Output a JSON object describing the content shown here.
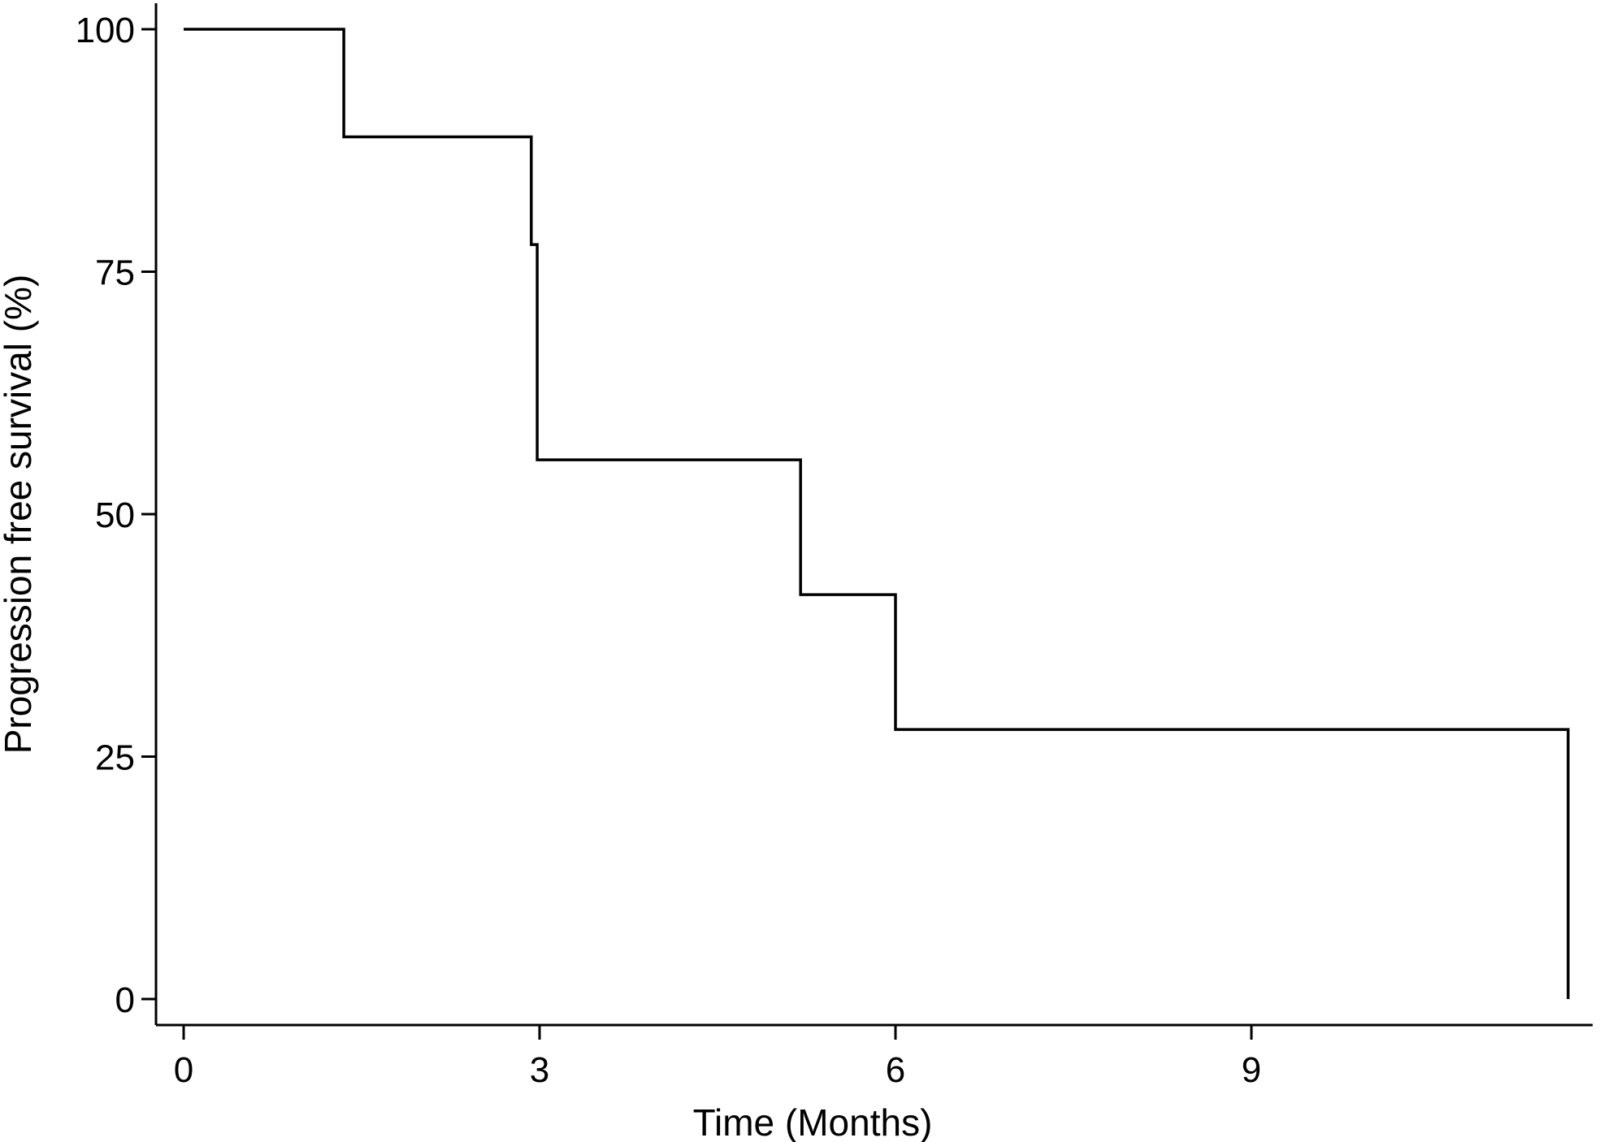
{
  "chart_data": {
    "type": "line",
    "style": "step",
    "title": "",
    "xlabel": "Time (Months)",
    "ylabel": "Progression free survival (%)",
    "xlim": [
      0,
      11.7
    ],
    "ylim": [
      0,
      100
    ],
    "xticks": [
      0,
      3,
      6,
      9
    ],
    "xtick_labels": [
      "0",
      "3",
      "6",
      "9"
    ],
    "yticks": [
      0,
      25,
      50,
      75,
      100
    ],
    "ytick_labels": [
      "0",
      "25",
      "50",
      "75",
      "100"
    ],
    "grid": false,
    "legend": "none",
    "line_color": "#000000",
    "series": [
      {
        "x": [
          0,
          1.35,
          1.35,
          2.93,
          2.93,
          2.98,
          2.98,
          5.2,
          5.2,
          6.0,
          6.0,
          11.67,
          11.67
        ],
        "y": [
          100,
          100,
          88.9,
          88.9,
          77.8,
          77.8,
          55.6,
          55.6,
          41.7,
          41.7,
          27.8,
          27.8,
          0
        ]
      }
    ]
  }
}
